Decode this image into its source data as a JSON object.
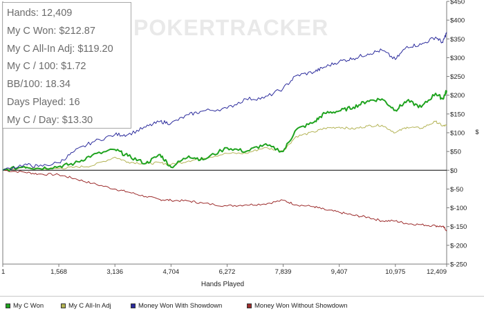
{
  "watermark": "POKERTRACKER",
  "stats": [
    "Hands: 12,409",
    "My C Won: $212.87",
    "My C All-In Adj: $119.20",
    "My C / 100: $1.72",
    "BB/100: 18.34",
    "Days Played: 16",
    "My C / Day: $13.30"
  ],
  "colors": {
    "my_c_won": "#1fa31f",
    "all_in_adj": "#b3b354",
    "with_showdown": "#2b2b9c",
    "without_showdown": "#9c2b2b",
    "zero_line": "#000000",
    "axis": "#7a7a7a"
  },
  "chart_data": {
    "type": "line",
    "title": "",
    "xlabel": "Hands Played",
    "ylabel": "$",
    "xlim": [
      1,
      12409
    ],
    "ylim": [
      -250,
      450
    ],
    "x_ticks": [
      1,
      1568,
      3136,
      4704,
      6272,
      7839,
      9407,
      10975,
      12409
    ],
    "x_tick_labels": [
      "1",
      "1,568",
      "3,136",
      "4,704",
      "6,272",
      "7,839",
      "9,407",
      "10,975",
      "12,409"
    ],
    "y_ticks": [
      -250,
      -200,
      -150,
      -100,
      -50,
      0,
      50,
      100,
      150,
      200,
      250,
      300,
      350,
      400,
      450
    ],
    "y_tick_labels": [
      "$-250",
      "$-200",
      "$-150",
      "$-100",
      "$-50",
      "$0",
      "$50",
      "$100",
      "$150",
      "$200",
      "$250",
      "$300",
      "$350",
      "$400",
      "$450"
    ],
    "y_axis_side": "right",
    "grid": false,
    "legend_position": "bottom",
    "x": [
      1,
      600,
      1000,
      1568,
      2000,
      2500,
      3136,
      3500,
      4000,
      4400,
      4704,
      5200,
      5600,
      6272,
      6800,
      7300,
      7839,
      8200,
      8700,
      9000,
      9407,
      9800,
      10200,
      10600,
      10975,
      11300,
      11700,
      12100,
      12300,
      12409
    ],
    "series": [
      {
        "name": "My C Won",
        "values": [
          0,
          10,
          5,
          10,
          18,
          40,
          55,
          38,
          18,
          42,
          8,
          38,
          28,
          60,
          50,
          68,
          50,
          108,
          128,
          152,
          158,
          168,
          185,
          190,
          160,
          185,
          168,
          205,
          190,
          212
        ]
      },
      {
        "name": "My C All-In Adj",
        "values": [
          0,
          8,
          4,
          5,
          8,
          12,
          35,
          22,
          18,
          20,
          15,
          25,
          32,
          45,
          45,
          60,
          52,
          90,
          102,
          112,
          115,
          110,
          118,
          120,
          100,
          115,
          112,
          130,
          118,
          119
        ]
      },
      {
        "name": "Money Won With Showdown",
        "values": [
          0,
          15,
          10,
          20,
          50,
          75,
          95,
          95,
          115,
          130,
          125,
          148,
          158,
          165,
          190,
          192,
          218,
          252,
          262,
          275,
          290,
          298,
          310,
          320,
          295,
          330,
          335,
          355,
          340,
          368
        ]
      },
      {
        "name": "Money Won Without Showdown",
        "values": [
          0,
          -5,
          -10,
          -12,
          -22,
          -35,
          -50,
          -58,
          -70,
          -78,
          -80,
          -82,
          -88,
          -95,
          -92,
          -90,
          -80,
          -92,
          -97,
          -105,
          -112,
          -120,
          -125,
          -135,
          -135,
          -142,
          -145,
          -148,
          -150,
          -160
        ]
      }
    ]
  }
}
